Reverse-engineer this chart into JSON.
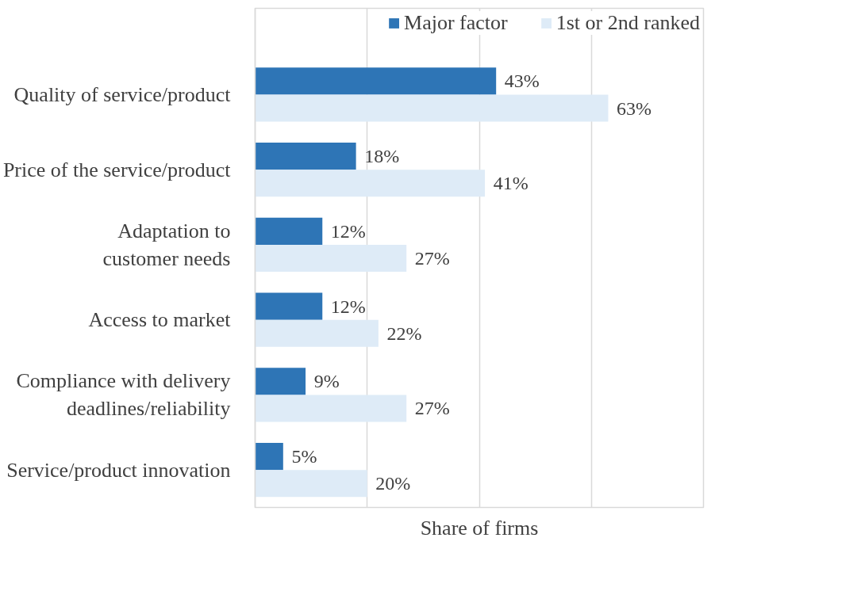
{
  "chart_data": {
    "type": "bar",
    "orientation": "horizontal",
    "xlabel": "Share of firms",
    "categories": [
      "Quality of service/product",
      "Price of the service/product",
      "Adaptation to\ncustomer needs",
      "Access to market",
      "Compliance with delivery\ndeadlines/reliability",
      "Service/product innovation"
    ],
    "series": [
      {
        "name": "Major factor",
        "color": "#2e75b6",
        "values": [
          43,
          18,
          12,
          12,
          9,
          5
        ],
        "value_labels": [
          "43%",
          "18%",
          "12%",
          "12%",
          "9%",
          "5%"
        ]
      },
      {
        "name": "1st or 2nd ranked",
        "color": "#deebf7",
        "values": [
          63,
          41,
          27,
          22,
          27,
          20
        ],
        "value_labels": [
          "63%",
          "41%",
          "27%",
          "22%",
          "27%",
          "20%"
        ]
      }
    ],
    "xlim": [
      0,
      80
    ],
    "xticks": [
      {
        "value": 0,
        "label": null
      },
      {
        "value": 20,
        "label": null
      },
      {
        "value": 40,
        "label": null
      },
      {
        "value": 60,
        "label": null
      },
      {
        "value": 80,
        "label": null
      }
    ],
    "tick_labels": "y",
    "grid": "x",
    "legend": "top right"
  }
}
